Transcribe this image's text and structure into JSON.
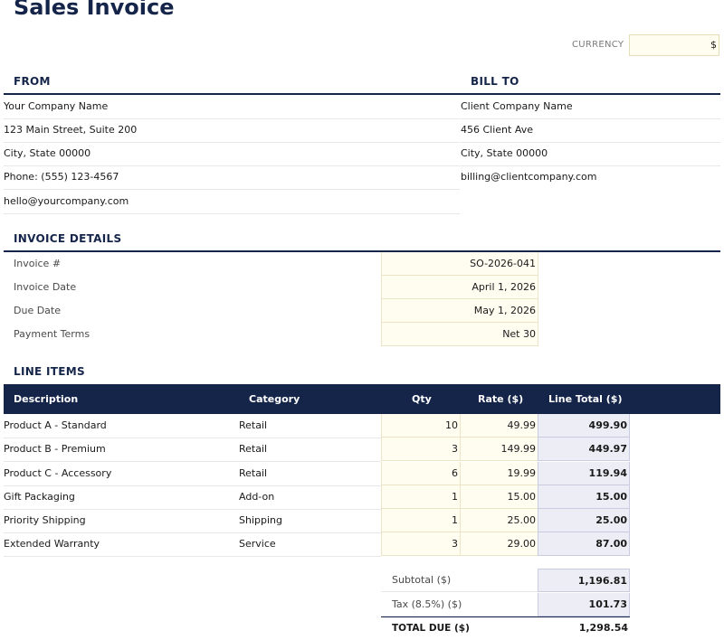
{
  "title": "Sales Invoice",
  "currency": {
    "label": "CURRENCY",
    "value": "$"
  },
  "from": {
    "heading": "FROM",
    "lines": [
      "Your Company Name",
      "123 Main Street, Suite 200",
      "City, State 00000",
      "Phone: (555) 123-4567",
      "hello@yourcompany.com"
    ]
  },
  "bill_to": {
    "heading": "BILL TO",
    "lines": [
      "Client Company Name",
      "456 Client Ave",
      "City, State 00000",
      "billing@clientcompany.com"
    ]
  },
  "invoice_details": {
    "heading": "INVOICE DETAILS",
    "rows": [
      {
        "label": "Invoice #",
        "value": "SO-2026-041"
      },
      {
        "label": "Invoice Date",
        "value": "April 1, 2026"
      },
      {
        "label": "Due Date",
        "value": "May 1, 2026"
      },
      {
        "label": "Payment Terms",
        "value": "Net 30"
      }
    ]
  },
  "line_items": {
    "heading": "LINE ITEMS",
    "columns": {
      "description": "Description",
      "category": "Category",
      "qty": "Qty",
      "rate": "Rate ($)",
      "total": "Line Total ($)"
    },
    "rows": [
      {
        "description": "Product A - Standard",
        "category": "Retail",
        "qty": "10",
        "rate": "49.99",
        "total": "499.90"
      },
      {
        "description": "Product B - Premium",
        "category": "Retail",
        "qty": "3",
        "rate": "149.99",
        "total": "449.97"
      },
      {
        "description": "Product C - Accessory",
        "category": "Retail",
        "qty": "6",
        "rate": "19.99",
        "total": "119.94"
      },
      {
        "description": "Gift Packaging",
        "category": "Add-on",
        "qty": "1",
        "rate": "15.00",
        "total": "15.00"
      },
      {
        "description": "Priority Shipping",
        "category": "Shipping",
        "qty": "1",
        "rate": "25.00",
        "total": "25.00"
      },
      {
        "description": "Extended Warranty",
        "category": "Service",
        "qty": "3",
        "rate": "29.00",
        "total": "87.00"
      }
    ]
  },
  "summary": {
    "subtotal_label": "Subtotal ($)",
    "subtotal": "1,196.81",
    "tax_label": "Tax (8.5%) ($)",
    "tax": "101.73",
    "total_label": "TOTAL DUE ($)",
    "total": "1,298.54"
  }
}
